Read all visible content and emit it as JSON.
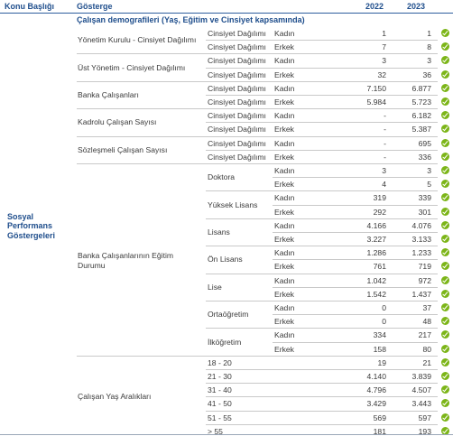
{
  "header": {
    "konu": "Konu Başlığı",
    "gosterge": "Gösterge",
    "y2022": "2022",
    "y2023": "2023"
  },
  "subtitle": "Çalışan demografileri (Yaş, Eğitim ve Cinsiyet kapsamında)",
  "konu_label": "Sosyal Performans Göstergeleri",
  "groups": [
    {
      "label": "Yönetim Kurulu - Cinsiyet Dağılımı",
      "rows": [
        {
          "c1": "Cinsiyet Dağılımı",
          "c2": "Kadın",
          "v2022": "1",
          "v2023": "1"
        },
        {
          "c1": "Cinsiyet Dağılımı",
          "c2": "Erkek",
          "v2022": "7",
          "v2023": "8"
        }
      ]
    },
    {
      "label": "Üst Yönetim - Cinsiyet Dağılımı",
      "rows": [
        {
          "c1": "Cinsiyet Dağılımı",
          "c2": "Kadın",
          "v2022": "3",
          "v2023": "3"
        },
        {
          "c1": "Cinsiyet Dağılımı",
          "c2": "Erkek",
          "v2022": "32",
          "v2023": "36"
        }
      ]
    },
    {
      "label": "Banka Çalışanları",
      "rows": [
        {
          "c1": "Cinsiyet Dağılımı",
          "c2": "Kadın",
          "v2022": "7.150",
          "v2023": "6.877"
        },
        {
          "c1": "Cinsiyet Dağılımı",
          "c2": "Erkek",
          "v2022": "5.984",
          "v2023": "5.723"
        }
      ]
    },
    {
      "label": "Kadrolu Çalışan Sayısı",
      "rows": [
        {
          "c1": "Cinsiyet Dağılımı",
          "c2": "Kadın",
          "v2022": "-",
          "v2023": "6.182"
        },
        {
          "c1": "Cinsiyet Dağılımı",
          "c2": "Erkek",
          "v2022": "-",
          "v2023": "5.387"
        }
      ]
    },
    {
      "label": "Sözleşmeli Çalışan Sayısı",
      "rows": [
        {
          "c1": "Cinsiyet Dağılımı",
          "c2": "Kadın",
          "v2022": "-",
          "v2023": "695"
        },
        {
          "c1": "Cinsiyet Dağılımı",
          "c2": "Erkek",
          "v2022": "-",
          "v2023": "336"
        }
      ]
    }
  ],
  "education": {
    "label": "Banka Çalışanlarının Eğitim Durumu",
    "levels": [
      {
        "name": "Doktora",
        "rows": [
          {
            "g": "Kadın",
            "v2022": "3",
            "v2023": "3"
          },
          {
            "g": "Erkek",
            "v2022": "4",
            "v2023": "5"
          }
        ]
      },
      {
        "name": "Yüksek Lisans",
        "rows": [
          {
            "g": "Kadın",
            "v2022": "319",
            "v2023": "339"
          },
          {
            "g": "Erkek",
            "v2022": "292",
            "v2023": "301"
          }
        ]
      },
      {
        "name": "Lisans",
        "rows": [
          {
            "g": "Kadın",
            "v2022": "4.166",
            "v2023": "4.076"
          },
          {
            "g": "Erkek",
            "v2022": "3.227",
            "v2023": "3.133"
          }
        ]
      },
      {
        "name": "Ön Lisans",
        "rows": [
          {
            "g": "Kadın",
            "v2022": "1.286",
            "v2023": "1.233"
          },
          {
            "g": "Erkek",
            "v2022": "761",
            "v2023": "719"
          }
        ]
      },
      {
        "name": "Lise",
        "rows": [
          {
            "g": "Kadın",
            "v2022": "1.042",
            "v2023": "972"
          },
          {
            "g": "Erkek",
            "v2022": "1.542",
            "v2023": "1.437"
          }
        ]
      },
      {
        "name": "Ortaöğretim",
        "rows": [
          {
            "g": "Kadın",
            "v2022": "0",
            "v2023": "37"
          },
          {
            "g": "Erkek",
            "v2022": "0",
            "v2023": "48"
          }
        ]
      },
      {
        "name": "İlköğretim",
        "rows": [
          {
            "g": "Kadın",
            "v2022": "334",
            "v2023": "217"
          },
          {
            "g": "Erkek",
            "v2022": "158",
            "v2023": "80"
          }
        ]
      }
    ]
  },
  "age": {
    "label": "Çalışan Yaş Aralıkları",
    "rows": [
      {
        "range": "18 - 20",
        "v2022": "19",
        "v2023": "21"
      },
      {
        "range": "21 - 30",
        "v2022": "4.140",
        "v2023": "3.839"
      },
      {
        "range": "31 - 40",
        "v2022": "4.796",
        "v2023": "4.507"
      },
      {
        "range": "41 - 50",
        "v2022": "3.429",
        "v2023": "3.443"
      },
      {
        "range": "51 - 55",
        "v2022": "569",
        "v2023": "597"
      },
      {
        "range": "> 55",
        "v2022": "181",
        "v2023": "193"
      }
    ]
  },
  "colors": {
    "title_blue": "#1f4e8c",
    "check_green": "#7cb518",
    "rule": "#2e5e9e"
  },
  "status_icon": "check-circle-icon"
}
